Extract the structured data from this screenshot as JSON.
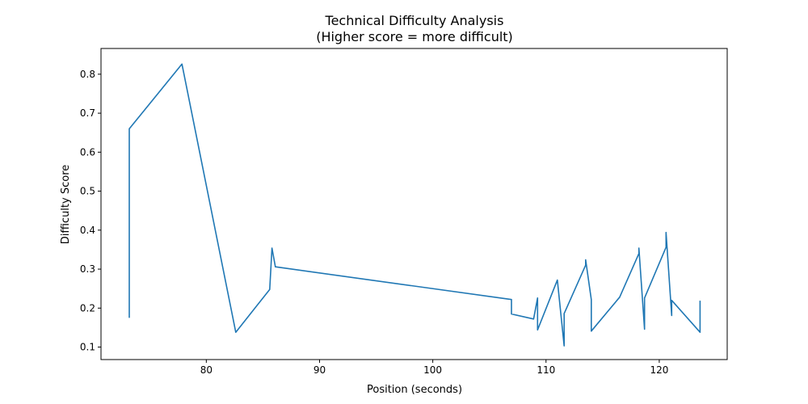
{
  "chart_data": {
    "type": "line",
    "title": "Technical Difficulty Analysis",
    "subtitle": "(Higher score = more difficult)",
    "xlabel": "Position (seconds)",
    "ylabel": "Difficulty Score",
    "xlim": [
      70.7,
      126.0
    ],
    "ylim": [
      0.068,
      0.866
    ],
    "xticks": [
      80,
      90,
      100,
      110,
      120
    ],
    "yticks": [
      0.1,
      0.2,
      0.3,
      0.4,
      0.5,
      0.6,
      0.7,
      0.8
    ],
    "xtick_labels": [
      "80",
      "90",
      "100",
      "110",
      "120"
    ],
    "ytick_labels": [
      "0.1",
      "0.2",
      "0.3",
      "0.4",
      "0.5",
      "0.6",
      "0.7",
      "0.8"
    ],
    "grid": false,
    "legend": "none",
    "line_color": "#1f77b4",
    "series": [
      {
        "x": [
          73.2,
          73.2,
          77.85,
          82.6,
          85.6,
          85.8,
          86.1,
          106.95,
          106.95,
          108.9,
          109.25,
          109.25,
          111.0,
          111.6,
          111.6,
          113.5,
          113.5,
          114.0,
          114.0,
          116.5,
          118.2,
          118.2,
          118.7,
          118.7,
          120.6,
          120.6,
          121.1,
          121.1,
          123.6,
          123.6
        ],
        "y": [
          0.175,
          0.66,
          0.826,
          0.138,
          0.248,
          0.354,
          0.306,
          0.222,
          0.185,
          0.172,
          0.226,
          0.144,
          0.272,
          0.103,
          0.186,
          0.31,
          0.324,
          0.222,
          0.141,
          0.228,
          0.34,
          0.354,
          0.146,
          0.226,
          0.356,
          0.394,
          0.181,
          0.22,
          0.138,
          0.219
        ]
      }
    ]
  }
}
